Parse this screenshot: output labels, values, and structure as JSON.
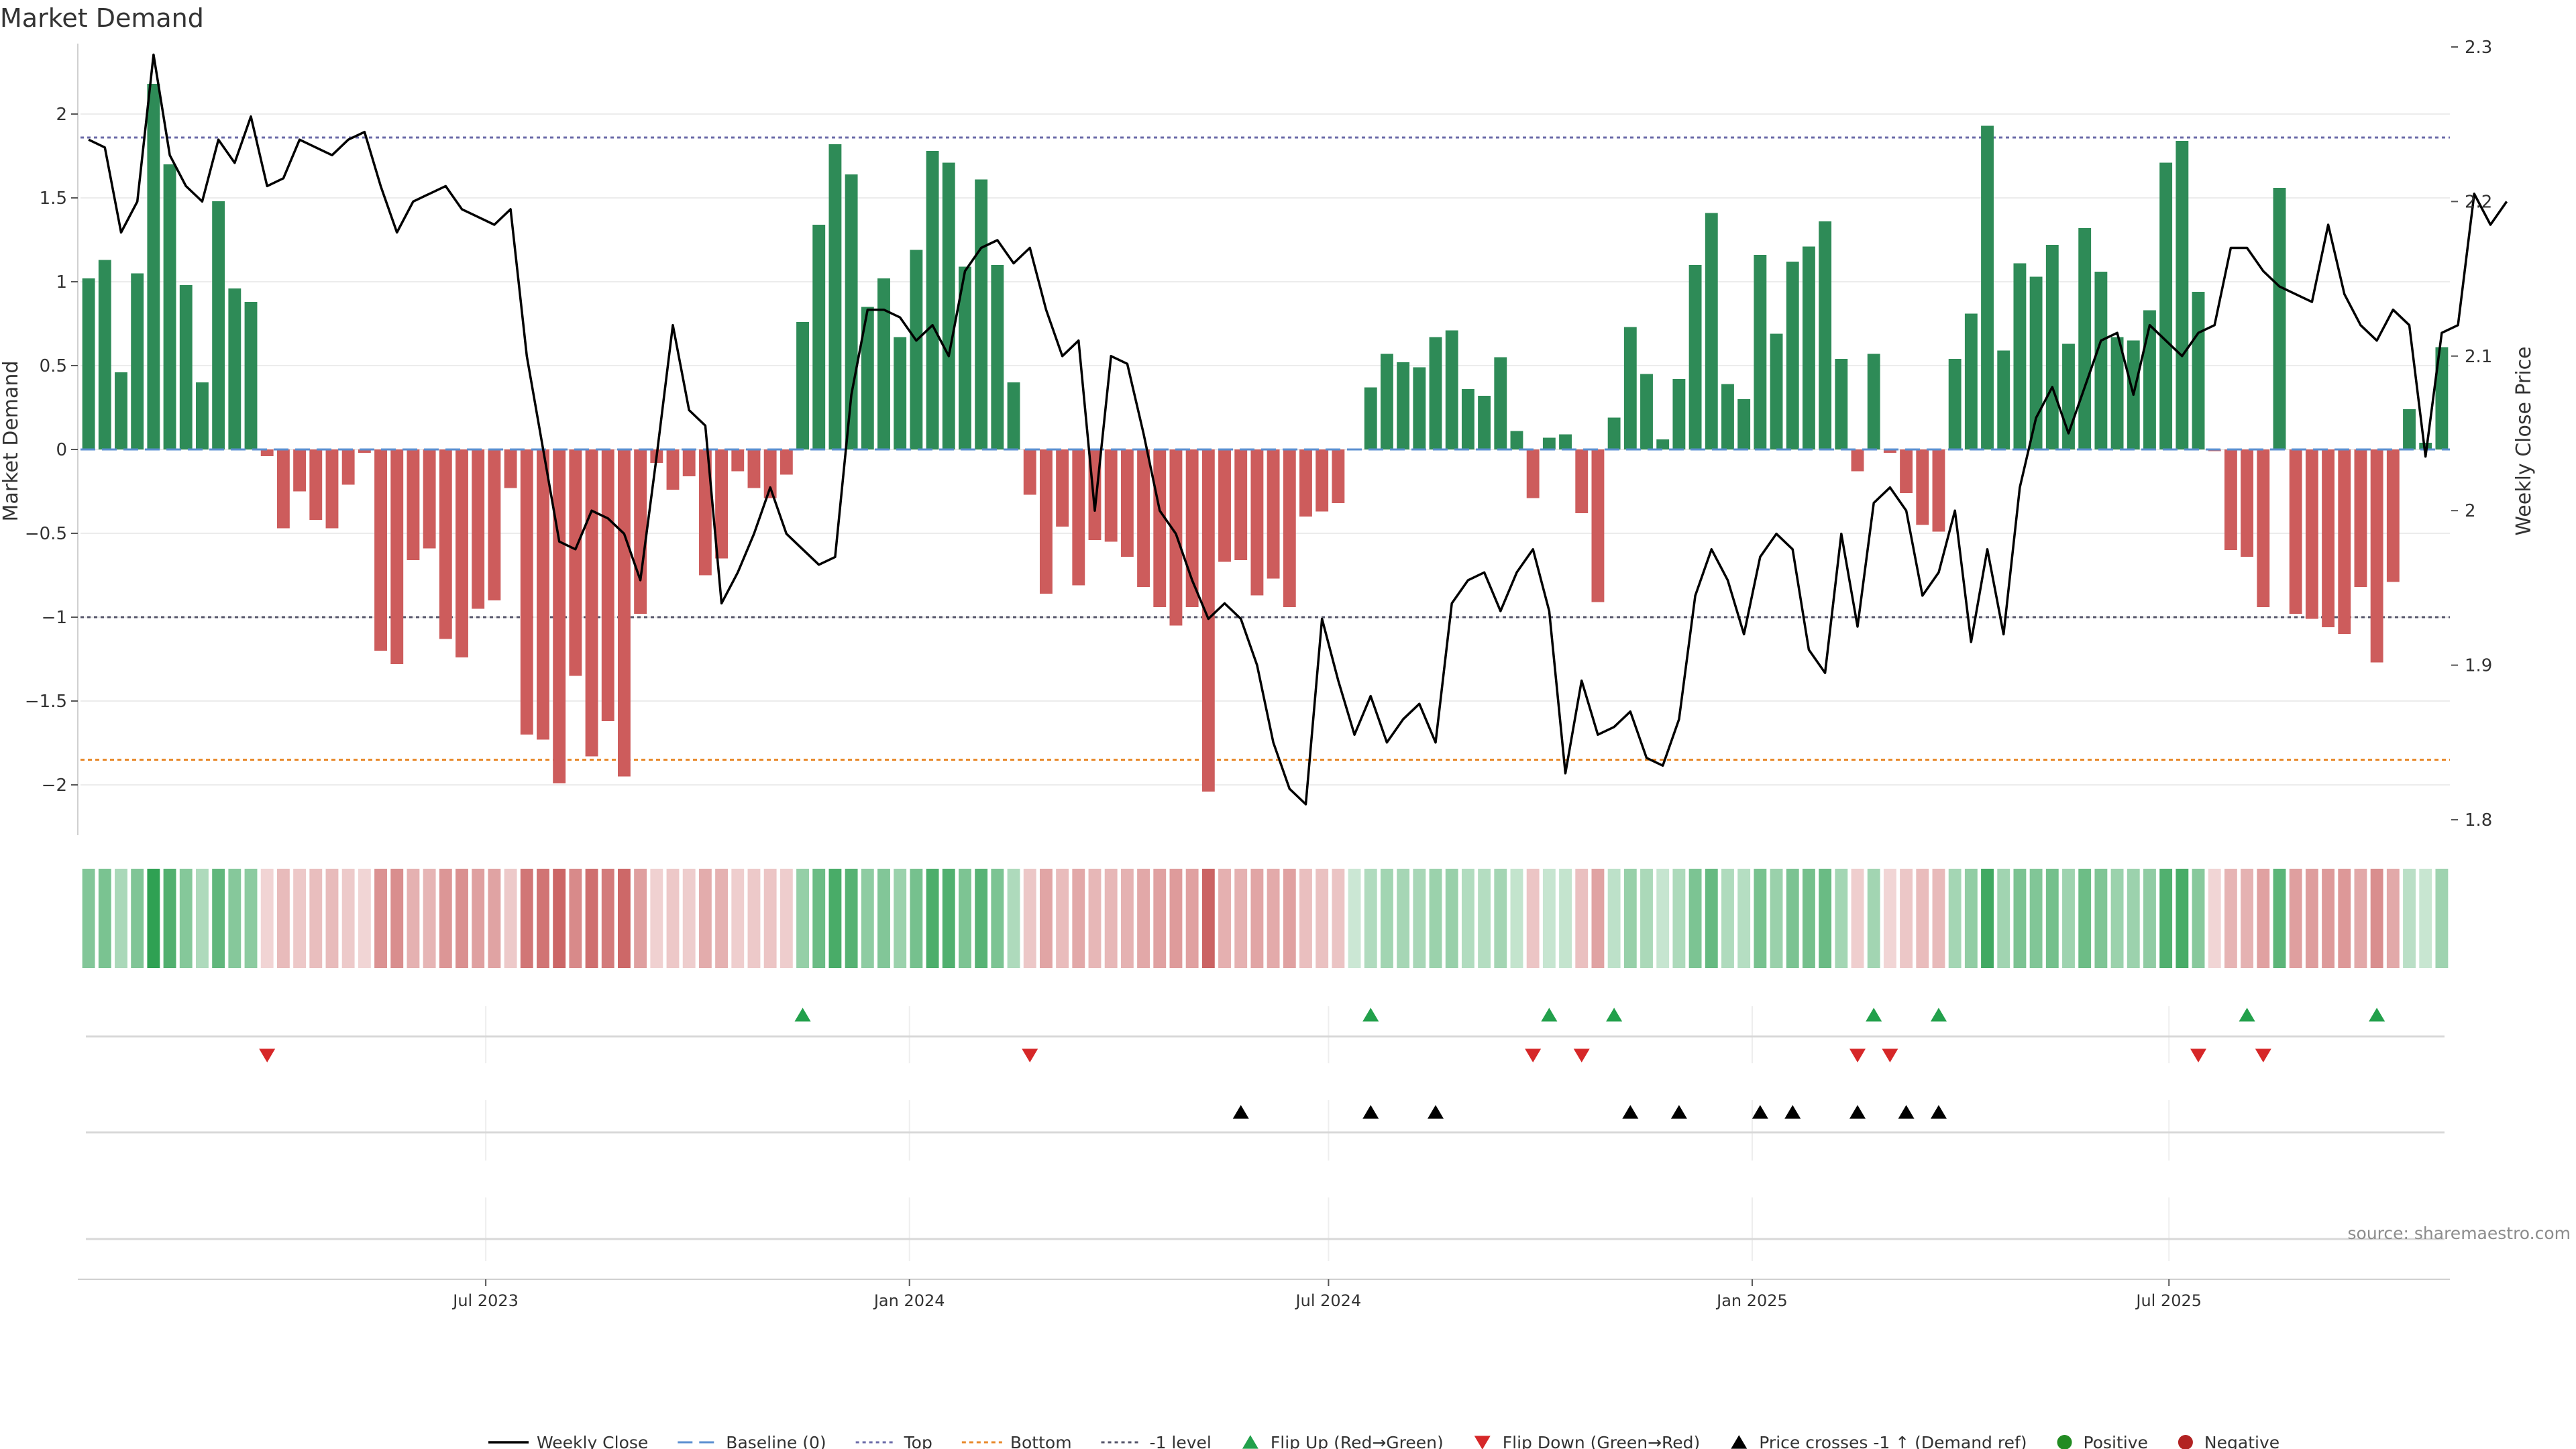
{
  "chart_data": {
    "type": "bar",
    "title": "Market Demand",
    "ylabel": "Market Demand",
    "y2label": "Weekly Close Price",
    "source": "source: sharemaestro.com",
    "ylim": [
      -2.3,
      2.4
    ],
    "y2lim": [
      1.79,
      2.3
    ],
    "yticks": [
      2,
      1.5,
      1,
      0.5,
      0,
      -0.5,
      -1,
      -1.5,
      -2
    ],
    "ytick_labels": [
      "2",
      "1.5",
      "1",
      "0.5",
      "0",
      "−0.5",
      "−1",
      "−1.5",
      "−2"
    ],
    "y2ticks": [
      2.3,
      2.2,
      2.1,
      2.0,
      1.9,
      1.8
    ],
    "y2tick_labels": [
      "2.3",
      "2.2",
      "2.1",
      "2",
      "1.9",
      "1.8"
    ],
    "x_start": "2023-01-06",
    "x_end": "2025-10-31",
    "xticks": [
      {
        "date": "2023-07-01",
        "label": "Jul 2023"
      },
      {
        "date": "2024-01-01",
        "label": "Jan 2024"
      },
      {
        "date": "2024-07-01",
        "label": "Jul 2024"
      },
      {
        "date": "2025-01-01",
        "label": "Jan 2025"
      },
      {
        "date": "2025-07-01",
        "label": "Jul 2025"
      }
    ],
    "levels": {
      "top": 1.86,
      "bottom": -1.85,
      "minus_one": -1.0,
      "baseline": 0
    },
    "colors": {
      "positive": "#2e8b57",
      "negative": "#cd5c5c",
      "close_line": "#000000",
      "top_line": "#6b6ba8",
      "bottom_line": "#e8892b",
      "minus_one_line": "#55556a",
      "baseline_line": "#5b8fd0",
      "flip_up": "#22a04b",
      "flip_down": "#d62728",
      "cross": "#000000",
      "dot_positive": "#228b22",
      "dot_negative": "#b22222"
    },
    "demand": [
      1.02,
      1.13,
      0.46,
      1.05,
      2.18,
      1.7,
      0.98,
      0.4,
      1.48,
      0.96,
      0.88,
      -0.04,
      -0.47,
      -0.25,
      -0.42,
      -0.47,
      -0.21,
      -0.02,
      -1.2,
      -1.28,
      -0.66,
      -0.59,
      -1.13,
      -1.24,
      -0.95,
      -0.9,
      -0.23,
      -1.7,
      -1.73,
      -1.99,
      -1.35,
      -1.83,
      -1.62,
      -1.95,
      -0.98,
      -0.08,
      -0.24,
      -0.16,
      -0.75,
      -0.65,
      -0.13,
      -0.23,
      -0.29,
      -0.15,
      0.76,
      1.34,
      1.82,
      1.64,
      0.85,
      1.02,
      0.67,
      1.19,
      1.78,
      1.71,
      1.09,
      1.61,
      1.1,
      0.4,
      -0.27,
      -0.86,
      -0.46,
      -0.81,
      -0.54,
      -0.55,
      -0.64,
      -0.82,
      -0.94,
      -1.05,
      -0.94,
      -2.04,
      -0.67,
      -0.66,
      -0.87,
      -0.77,
      -0.94,
      -0.4,
      -0.37,
      -0.32,
      0,
      0.37,
      0.57,
      0.52,
      0.49,
      0.67,
      0.71,
      0.36,
      0.32,
      0.55,
      0.11,
      -0.29,
      0.07,
      0.09,
      -0.38,
      -0.91,
      0.19,
      0.73,
      0.45,
      0.06,
      0.42,
      1.1,
      1.41,
      0.39,
      0.3,
      1.16,
      0.69,
      1.12,
      1.21,
      1.36,
      0.54,
      -0.13,
      0.57,
      -0.02,
      -0.26,
      -0.45,
      -0.49,
      0.54,
      0.81,
      1.93,
      0.59,
      1.11,
      1.03,
      1.22,
      0.63,
      1.32,
      1.06,
      0.67,
      0.65,
      0.83,
      1.71,
      1.84,
      0.94,
      -0.01,
      -0.6,
      -0.64,
      -0.94,
      1.56,
      -0.98,
      -1.01,
      -1.06,
      -1.1,
      -0.82,
      -1.27,
      -0.79,
      0.24,
      0.04,
      0.61
    ],
    "close": [
      2.24,
      2.235,
      2.18,
      2.2,
      2.295,
      2.23,
      2.21,
      2.2,
      2.24,
      2.225,
      2.255,
      2.21,
      2.215,
      2.24,
      2.235,
      2.23,
      2.24,
      2.245,
      2.21,
      2.18,
      2.2,
      2.205,
      2.21,
      2.195,
      2.19,
      2.185,
      2.195,
      2.1,
      2.04,
      1.98,
      1.975,
      2.0,
      1.995,
      1.985,
      1.955,
      2.035,
      2.12,
      2.065,
      2.055,
      1.94,
      1.96,
      1.985,
      2.015,
      1.985,
      1.975,
      1.965,
      1.97,
      2.075,
      2.13,
      2.13,
      2.125,
      2.11,
      2.12,
      2.1,
      2.155,
      2.17,
      2.175,
      2.16,
      2.17,
      2.13,
      2.1,
      2.11,
      2.0,
      2.1,
      2.095,
      2.05,
      2.0,
      1.985,
      1.955,
      1.93,
      1.94,
      1.93,
      1.9,
      1.85,
      1.82,
      1.81,
      1.93,
      1.89,
      1.855,
      1.88,
      1.85,
      1.865,
      1.875,
      1.85,
      1.94,
      1.955,
      1.96,
      1.935,
      1.96,
      1.975,
      1.935,
      1.83,
      1.89,
      1.855,
      1.86,
      1.87,
      1.84,
      1.835,
      1.865,
      1.945,
      1.975,
      1.955,
      1.92,
      1.97,
      1.985,
      1.975,
      1.91,
      1.895,
      1.985,
      1.925,
      2.005,
      2.015,
      2.0,
      1.945,
      1.96,
      2.0,
      1.915,
      1.975,
      1.92,
      2.015,
      2.06,
      2.08,
      2.05,
      2.08,
      2.11,
      2.115,
      2.075,
      2.12,
      2.11,
      2.1,
      2.115,
      2.12,
      2.17,
      2.17,
      2.155,
      2.145,
      2.14,
      2.135,
      2.185,
      2.14,
      2.12,
      2.11,
      2.13,
      2.12,
      2.035,
      2.115,
      2.12,
      2.205,
      2.185,
      2.2
    ],
    "flip_up_idx": [
      44,
      79,
      90,
      94,
      110,
      114,
      133,
      141
    ],
    "flip_down_idx": [
      11,
      58,
      89,
      92,
      109,
      111,
      130,
      134
    ],
    "cross_idx": [
      71,
      79,
      83,
      95,
      98,
      103,
      105,
      109,
      112,
      114
    ],
    "legend": [
      {
        "key": "weekly_close",
        "label": "Weekly Close"
      },
      {
        "key": "baseline",
        "label": "Baseline (0)"
      },
      {
        "key": "top",
        "label": "Top"
      },
      {
        "key": "bottom",
        "label": "Bottom"
      },
      {
        "key": "minus_one",
        "label": "-1 level"
      },
      {
        "key": "flip_up",
        "label": "Flip Up (Red→Green)"
      },
      {
        "key": "flip_down",
        "label": "Flip Down (Green→Red)"
      },
      {
        "key": "cross",
        "label": "Price crosses -1 ↑ (Demand ref)"
      },
      {
        "key": "positive",
        "label": "Positive"
      },
      {
        "key": "negative",
        "label": "Negative"
      }
    ]
  }
}
